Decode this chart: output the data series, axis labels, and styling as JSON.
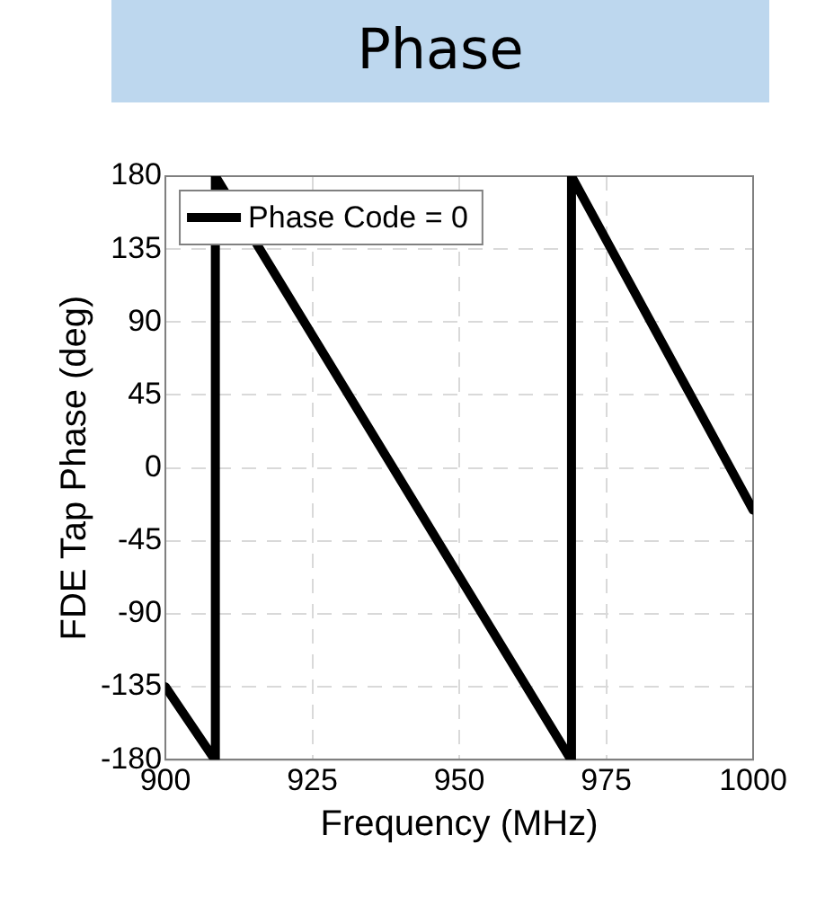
{
  "chart_data": {
    "type": "line",
    "title": "Phase",
    "xlabel": "Frequency (MHz)",
    "ylabel": "FDE Tap Phase (deg)",
    "x": [
      900,
      908.4,
      908.5,
      969,
      969.1,
      1000
    ],
    "series": [
      {
        "name": "Phase Code = 0",
        "color": "#000000",
        "values": [
          -135,
          -180,
          180,
          -180,
          180,
          -26
        ]
      }
    ],
    "xlim": [
      900,
      1000
    ],
    "xticks": [
      900,
      925,
      950,
      975,
      1000
    ],
    "ylim": [
      -180,
      180
    ],
    "yticks": [
      -180,
      -135,
      -90,
      -45,
      0,
      45,
      90,
      135,
      180
    ],
    "grid": true,
    "legend": "top left",
    "marker": "none",
    "line_style": "solid"
  }
}
